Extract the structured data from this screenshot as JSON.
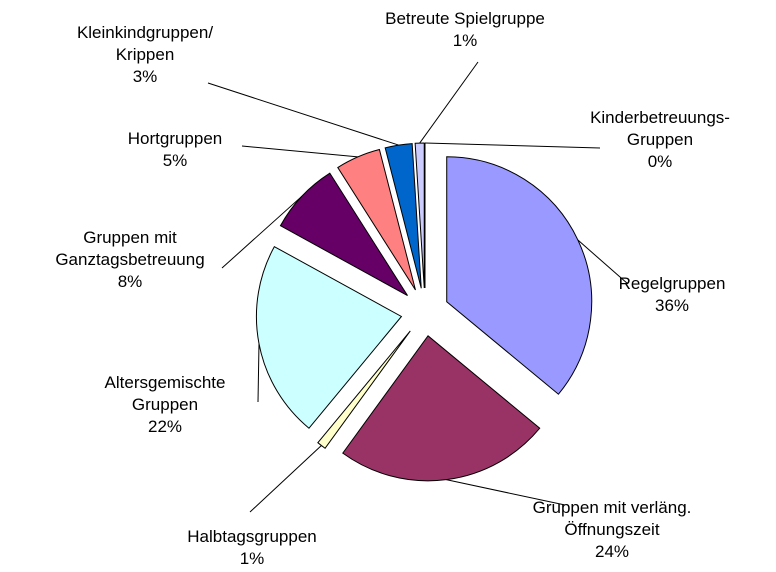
{
  "chart_data": {
    "type": "pie",
    "categories": [
      "Regelgruppen",
      "Gruppen mit verläng.\nÖffnungszeit",
      "Halbtagsgruppen",
      "Altersgemischte\nGruppen",
      "Gruppen mit\nGanztagsbetreuung",
      "Hortgruppen",
      "Kleinkindgruppen/\nKrippen",
      "Betreute Spielgruppe",
      "Kinderbetreuungs-\nGruppen"
    ],
    "values": [
      36,
      24,
      1,
      22,
      8,
      5,
      3,
      1,
      0
    ],
    "value_labels": [
      "36%",
      "24%",
      "1%",
      "22%",
      "8%",
      "5%",
      "3%",
      "1%",
      "0%"
    ],
    "colors": [
      "#9999ff",
      "#993366",
      "#ffffcc",
      "#ccffff",
      "#660066",
      "#ff8080",
      "#0066cc",
      "#ccccff",
      "#000080"
    ]
  }
}
